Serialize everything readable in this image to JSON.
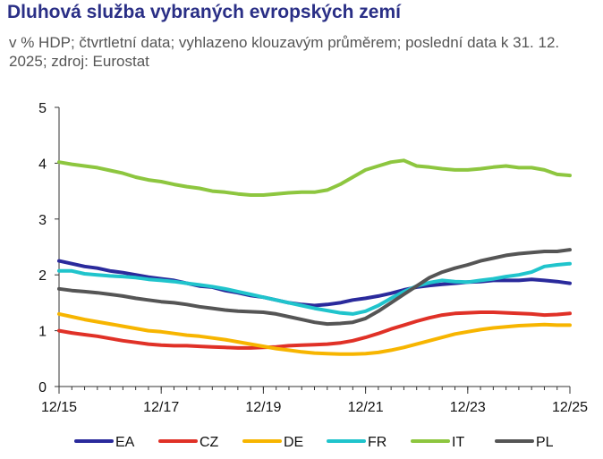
{
  "title": "Dluhová služba vybraných evropských zemí",
  "subtitle": "v % HDP; čtvrtletní data; vyhlazeno klouzavým průměrem; poslední data k 31. 12. 2025; zdroj: Eurostat",
  "chart_data": {
    "type": "line",
    "title": "Dluhová služba vybraných evropských zemí",
    "subtitle": "v % HDP; čtvrtletní data; vyhlazeno klouzavým průměrem; poslední data k 31. 12. 2025; zdroj: Eurostat",
    "xlabel": "",
    "ylabel": "",
    "ylim": [
      0,
      5
    ],
    "yticks": [
      0,
      1,
      2,
      3,
      4,
      5
    ],
    "xticks": [
      "12/15",
      "12/17",
      "12/19",
      "12/21",
      "12/23",
      "12/25"
    ],
    "x": [
      "12/15",
      "3/16",
      "6/16",
      "9/16",
      "12/16",
      "3/17",
      "6/17",
      "9/17",
      "12/17",
      "3/18",
      "6/18",
      "9/18",
      "12/18",
      "3/19",
      "6/19",
      "9/19",
      "12/19",
      "3/20",
      "6/20",
      "9/20",
      "12/20",
      "3/21",
      "6/21",
      "9/21",
      "12/21",
      "3/22",
      "6/22",
      "9/22",
      "12/22",
      "3/23",
      "6/23",
      "9/23",
      "12/23",
      "3/24",
      "6/24",
      "9/24",
      "12/24",
      "3/25",
      "6/25",
      "9/25",
      "12/25"
    ],
    "legend_position": "bottom",
    "grid": false,
    "series": [
      {
        "name": "EA",
        "color": "#2a2a9c",
        "values": [
          2.25,
          2.2,
          2.15,
          2.12,
          2.07,
          2.04,
          2.0,
          1.96,
          1.93,
          1.9,
          1.85,
          1.8,
          1.78,
          1.72,
          1.68,
          1.63,
          1.6,
          1.55,
          1.5,
          1.47,
          1.45,
          1.47,
          1.5,
          1.55,
          1.58,
          1.62,
          1.67,
          1.73,
          1.78,
          1.81,
          1.83,
          1.85,
          1.87,
          1.88,
          1.9,
          1.9,
          1.9,
          1.92,
          1.9,
          1.88,
          1.85
        ]
      },
      {
        "name": "CZ",
        "color": "#e03127",
        "values": [
          1.0,
          0.96,
          0.93,
          0.9,
          0.86,
          0.82,
          0.79,
          0.76,
          0.74,
          0.73,
          0.73,
          0.72,
          0.71,
          0.7,
          0.69,
          0.69,
          0.7,
          0.71,
          0.73,
          0.74,
          0.75,
          0.76,
          0.78,
          0.82,
          0.88,
          0.95,
          1.03,
          1.1,
          1.17,
          1.23,
          1.28,
          1.31,
          1.32,
          1.33,
          1.33,
          1.32,
          1.31,
          1.3,
          1.28,
          1.29,
          1.31
        ]
      },
      {
        "name": "DE",
        "color": "#f7b500",
        "values": [
          1.3,
          1.25,
          1.2,
          1.16,
          1.12,
          1.08,
          1.04,
          1.0,
          0.98,
          0.95,
          0.92,
          0.9,
          0.87,
          0.84,
          0.8,
          0.76,
          0.72,
          0.68,
          0.65,
          0.62,
          0.6,
          0.59,
          0.58,
          0.58,
          0.59,
          0.61,
          0.65,
          0.7,
          0.76,
          0.82,
          0.88,
          0.94,
          0.98,
          1.02,
          1.05,
          1.07,
          1.09,
          1.1,
          1.11,
          1.1,
          1.1
        ]
      },
      {
        "name": "FR",
        "color": "#20c4cc",
        "values": [
          2.07,
          2.07,
          2.02,
          2.0,
          1.98,
          1.97,
          1.95,
          1.92,
          1.9,
          1.88,
          1.85,
          1.82,
          1.79,
          1.75,
          1.7,
          1.65,
          1.6,
          1.55,
          1.5,
          1.45,
          1.4,
          1.36,
          1.32,
          1.3,
          1.35,
          1.45,
          1.58,
          1.7,
          1.8,
          1.86,
          1.9,
          1.88,
          1.87,
          1.9,
          1.93,
          1.97,
          2.0,
          2.05,
          2.15,
          2.18,
          2.2
        ]
      },
      {
        "name": "IT",
        "color": "#8dc63f",
        "values": [
          4.02,
          3.98,
          3.95,
          3.92,
          3.87,
          3.82,
          3.75,
          3.7,
          3.67,
          3.62,
          3.58,
          3.55,
          3.5,
          3.48,
          3.45,
          3.43,
          3.43,
          3.45,
          3.47,
          3.48,
          3.48,
          3.52,
          3.62,
          3.75,
          3.88,
          3.95,
          4.02,
          4.05,
          3.95,
          3.93,
          3.9,
          3.88,
          3.88,
          3.9,
          3.93,
          3.95,
          3.92,
          3.92,
          3.88,
          3.8,
          3.78
        ]
      },
      {
        "name": "PL",
        "color": "#555555",
        "values": [
          1.75,
          1.72,
          1.7,
          1.68,
          1.65,
          1.62,
          1.58,
          1.55,
          1.52,
          1.5,
          1.47,
          1.43,
          1.4,
          1.37,
          1.35,
          1.34,
          1.33,
          1.3,
          1.25,
          1.2,
          1.15,
          1.12,
          1.13,
          1.15,
          1.22,
          1.35,
          1.5,
          1.65,
          1.8,
          1.95,
          2.05,
          2.12,
          2.18,
          2.25,
          2.3,
          2.35,
          2.38,
          2.4,
          2.42,
          2.42,
          2.45
        ]
      }
    ]
  }
}
